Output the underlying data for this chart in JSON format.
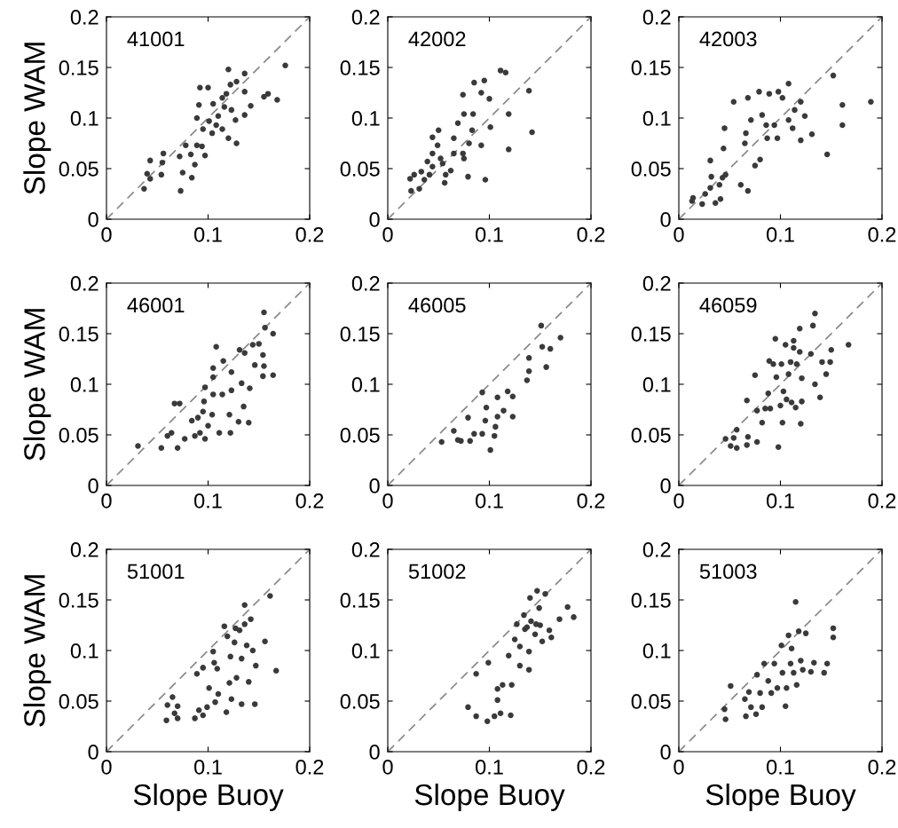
{
  "chart_data": [
    {
      "type": "scatter",
      "title": "41001",
      "ylabel": "Slope WAM",
      "xlim": [
        0,
        0.2
      ],
      "ylim": [
        0,
        0.2
      ],
      "xticks": [
        0,
        0.1,
        0.2
      ],
      "yticks": [
        0,
        0.05,
        0.1,
        0.15,
        0.2
      ],
      "series": [
        {
          "marker": "circle",
          "color": "#3a3a3a",
          "x": [
            0.037,
            0.04,
            0.043,
            0.043,
            0.054,
            0.056,
            0.055,
            0.073,
            0.072,
            0.075,
            0.078,
            0.083,
            0.084,
            0.087,
            0.089,
            0.094,
            0.097,
            0.095,
            0.089,
            0.092,
            0.1,
            0.091,
            0.101,
            0.105,
            0.104,
            0.11,
            0.114,
            0.118,
            0.12,
            0.122,
            0.12,
            0.128,
            0.123,
            0.128,
            0.136,
            0.136,
            0.136,
            0.142,
            0.155,
            0.159,
            0.168,
            0.176,
            0.116,
            0.114,
            0.127,
            0.108
          ],
          "values": [
            0.03,
            0.045,
            0.04,
            0.058,
            0.044,
            0.065,
            0.056,
            0.028,
            0.062,
            0.046,
            0.073,
            0.064,
            0.041,
            0.054,
            0.073,
            0.072,
            0.063,
            0.089,
            0.1,
            0.13,
            0.13,
            0.113,
            0.097,
            0.114,
            0.085,
            0.102,
            0.089,
            0.124,
            0.148,
            0.133,
            0.08,
            0.075,
            0.108,
            0.136,
            0.144,
            0.126,
            0.103,
            0.112,
            0.121,
            0.124,
            0.118,
            0.152,
            0.111,
            0.12,
            0.098,
            0.093
          ]
        },
        {
          "type": "line",
          "color": "#888888",
          "line_style": "dashed",
          "x": [
            0,
            0.2
          ],
          "values": [
            0,
            0.2
          ]
        }
      ]
    },
    {
      "type": "scatter",
      "title": "42002",
      "xlim": [
        0,
        0.2
      ],
      "ylim": [
        0,
        0.2
      ],
      "xticks": [
        0,
        0.1,
        0.2
      ],
      "yticks": [
        0,
        0.05,
        0.1,
        0.15,
        0.2
      ],
      "series": [
        {
          "marker": "circle",
          "color": "#3a3a3a",
          "x": [
            0.022,
            0.023,
            0.031,
            0.026,
            0.033,
            0.036,
            0.041,
            0.044,
            0.039,
            0.044,
            0.044,
            0.05,
            0.049,
            0.052,
            0.054,
            0.057,
            0.056,
            0.062,
            0.065,
            0.065,
            0.069,
            0.074,
            0.075,
            0.075,
            0.074,
            0.08,
            0.083,
            0.084,
            0.085,
            0.079,
            0.092,
            0.092,
            0.095,
            0.096,
            0.1,
            0.101,
            0.111,
            0.116,
            0.119,
            0.119,
            0.139,
            0.142
          ],
          "values": [
            0.04,
            0.028,
            0.03,
            0.044,
            0.047,
            0.039,
            0.044,
            0.052,
            0.057,
            0.065,
            0.081,
            0.088,
            0.073,
            0.06,
            0.055,
            0.044,
            0.036,
            0.048,
            0.065,
            0.08,
            0.095,
            0.065,
            0.06,
            0.104,
            0.123,
            0.075,
            0.088,
            0.104,
            0.135,
            0.042,
            0.073,
            0.125,
            0.137,
            0.039,
            0.119,
            0.091,
            0.147,
            0.145,
            0.104,
            0.069,
            0.127,
            0.086
          ]
        },
        {
          "type": "line",
          "color": "#888888",
          "line_style": "dashed",
          "x": [
            0,
            0.2
          ],
          "values": [
            0,
            0.2
          ]
        }
      ]
    },
    {
      "type": "scatter",
      "title": "42003",
      "xlim": [
        0,
        0.2
      ],
      "ylim": [
        0,
        0.2
      ],
      "xticks": [
        0,
        0.1,
        0.2
      ],
      "yticks": [
        0,
        0.05,
        0.1,
        0.15,
        0.2
      ],
      "series": [
        {
          "marker": "circle",
          "color": "#3a3a3a",
          "x": [
            0.013,
            0.014,
            0.023,
            0.026,
            0.031,
            0.032,
            0.031,
            0.036,
            0.041,
            0.04,
            0.043,
            0.046,
            0.045,
            0.044,
            0.054,
            0.061,
            0.068,
            0.065,
            0.066,
            0.068,
            0.071,
            0.075,
            0.079,
            0.08,
            0.082,
            0.086,
            0.089,
            0.087,
            0.097,
            0.094,
            0.102,
            0.108,
            0.108,
            0.112,
            0.114,
            0.12,
            0.124,
            0.12,
            0.131,
            0.146,
            0.152,
            0.161,
            0.161,
            0.189,
            0.098
          ],
          "values": [
            0.018,
            0.021,
            0.015,
            0.025,
            0.031,
            0.042,
            0.058,
            0.016,
            0.02,
            0.034,
            0.041,
            0.044,
            0.09,
            0.07,
            0.116,
            0.034,
            0.028,
            0.075,
            0.085,
            0.12,
            0.098,
            0.053,
            0.126,
            0.059,
            0.103,
            0.093,
            0.124,
            0.08,
            0.08,
            0.093,
            0.12,
            0.134,
            0.098,
            0.09,
            0.108,
            0.116,
            0.102,
            0.078,
            0.084,
            0.064,
            0.142,
            0.113,
            0.093,
            0.116,
            0.126
          ]
        },
        {
          "type": "line",
          "color": "#888888",
          "line_style": "dashed",
          "x": [
            0,
            0.2
          ],
          "values": [
            0,
            0.2
          ]
        }
      ]
    },
    {
      "type": "scatter",
      "title": "46001",
      "ylabel": "Slope WAM",
      "xlim": [
        0,
        0.2
      ],
      "ylim": [
        0,
        0.2
      ],
      "xticks": [
        0,
        0.1,
        0.2
      ],
      "yticks": [
        0,
        0.05,
        0.1,
        0.15,
        0.2
      ],
      "series": [
        {
          "marker": "circle",
          "color": "#3a3a3a",
          "x": [
            0.031,
            0.054,
            0.06,
            0.064,
            0.07,
            0.067,
            0.072,
            0.077,
            0.084,
            0.087,
            0.09,
            0.095,
            0.092,
            0.097,
            0.1,
            0.096,
            0.097,
            0.104,
            0.105,
            0.105,
            0.105,
            0.108,
            0.111,
            0.114,
            0.115,
            0.121,
            0.122,
            0.123,
            0.123,
            0.131,
            0.13,
            0.135,
            0.133,
            0.136,
            0.141,
            0.14,
            0.144,
            0.146,
            0.15,
            0.154,
            0.155,
            0.155,
            0.154,
            0.156,
            0.164,
            0.164
          ],
          "values": [
            0.039,
            0.037,
            0.049,
            0.052,
            0.037,
            0.081,
            0.081,
            0.046,
            0.064,
            0.049,
            0.067,
            0.073,
            0.052,
            0.046,
            0.059,
            0.083,
            0.097,
            0.07,
            0.09,
            0.107,
            0.116,
            0.137,
            0.052,
            0.09,
            0.123,
            0.07,
            0.052,
            0.112,
            0.094,
            0.134,
            0.063,
            0.078,
            0.101,
            0.131,
            0.096,
            0.062,
            0.139,
            0.119,
            0.14,
            0.129,
            0.171,
            0.118,
            0.108,
            0.156,
            0.15,
            0.109
          ]
        },
        {
          "type": "line",
          "color": "#888888",
          "line_style": "dashed",
          "x": [
            0,
            0.2
          ],
          "values": [
            0,
            0.2
          ]
        }
      ]
    },
    {
      "type": "scatter",
      "title": "46005",
      "xlim": [
        0,
        0.2
      ],
      "ylim": [
        0,
        0.2
      ],
      "xticks": [
        0,
        0.1,
        0.2
      ],
      "yticks": [
        0,
        0.05,
        0.1,
        0.15,
        0.2
      ],
      "series": [
        {
          "marker": "circle",
          "color": "#3a3a3a",
          "x": [
            0.053,
            0.065,
            0.069,
            0.072,
            0.079,
            0.081,
            0.085,
            0.093,
            0.093,
            0.096,
            0.097,
            0.101,
            0.105,
            0.106,
            0.108,
            0.108,
            0.114,
            0.118,
            0.123,
            0.123,
            0.137,
            0.139,
            0.139,
            0.151,
            0.152,
            0.156,
            0.16,
            0.17
          ],
          "values": [
            0.043,
            0.054,
            0.045,
            0.044,
            0.067,
            0.044,
            0.051,
            0.051,
            0.092,
            0.064,
            0.077,
            0.035,
            0.049,
            0.058,
            0.087,
            0.068,
            0.074,
            0.093,
            0.088,
            0.068,
            0.104,
            0.126,
            0.113,
            0.158,
            0.137,
            0.117,
            0.135,
            0.146
          ]
        },
        {
          "type": "line",
          "color": "#888888",
          "line_style": "dashed",
          "x": [
            0,
            0.2
          ],
          "values": [
            0,
            0.2
          ]
        }
      ]
    },
    {
      "type": "scatter",
      "title": "46059",
      "xlim": [
        0,
        0.2
      ],
      "ylim": [
        0,
        0.2
      ],
      "xticks": [
        0,
        0.1,
        0.2
      ],
      "yticks": [
        0,
        0.05,
        0.1,
        0.15,
        0.2
      ],
      "series": [
        {
          "marker": "circle",
          "color": "#3a3a3a",
          "x": [
            0.046,
            0.051,
            0.054,
            0.057,
            0.057,
            0.067,
            0.068,
            0.067,
            0.075,
            0.077,
            0.077,
            0.082,
            0.085,
            0.088,
            0.089,
            0.09,
            0.093,
            0.095,
            0.096,
            0.098,
            0.1,
            0.101,
            0.102,
            0.103,
            0.105,
            0.106,
            0.108,
            0.11,
            0.111,
            0.113,
            0.115,
            0.113,
            0.119,
            0.12,
            0.119,
            0.121,
            0.121,
            0.13,
            0.132,
            0.134,
            0.134,
            0.139,
            0.141,
            0.145,
            0.15,
            0.167,
            0.149,
            0.116
          ],
          "values": [
            0.046,
            0.039,
            0.047,
            0.037,
            0.055,
            0.04,
            0.048,
            0.084,
            0.109,
            0.043,
            0.074,
            0.062,
            0.076,
            0.091,
            0.123,
            0.076,
            0.12,
            0.145,
            0.107,
            0.038,
            0.079,
            0.12,
            0.062,
            0.093,
            0.139,
            0.085,
            0.11,
            0.122,
            0.082,
            0.136,
            0.077,
            0.143,
            0.132,
            0.061,
            0.155,
            0.083,
            0.106,
            0.13,
            0.158,
            0.17,
            0.1,
            0.087,
            0.122,
            0.11,
            0.134,
            0.139,
            0.122,
            0.12
          ]
        },
        {
          "type": "line",
          "color": "#888888",
          "line_style": "dashed",
          "x": [
            0,
            0.2
          ],
          "values": [
            0,
            0.2
          ]
        }
      ]
    },
    {
      "type": "scatter",
      "title": "51001",
      "xlabel": "Slope Buoy",
      "ylabel": "Slope WAM",
      "xlim": [
        0,
        0.2
      ],
      "ylim": [
        0,
        0.2
      ],
      "xticks": [
        0,
        0.1,
        0.2
      ],
      "yticks": [
        0,
        0.05,
        0.1,
        0.15,
        0.2
      ],
      "series": [
        {
          "marker": "circle",
          "color": "#3a3a3a",
          "x": [
            0.059,
            0.06,
            0.065,
            0.067,
            0.07,
            0.07,
            0.087,
            0.089,
            0.091,
            0.095,
            0.095,
            0.099,
            0.101,
            0.105,
            0.106,
            0.107,
            0.109,
            0.11,
            0.116,
            0.118,
            0.119,
            0.121,
            0.122,
            0.123,
            0.126,
            0.127,
            0.128,
            0.131,
            0.133,
            0.133,
            0.136,
            0.138,
            0.14,
            0.142,
            0.144,
            0.147,
            0.146,
            0.156,
            0.161,
            0.167,
            0.136
          ],
          "values": [
            0.031,
            0.046,
            0.054,
            0.038,
            0.045,
            0.033,
            0.033,
            0.077,
            0.041,
            0.036,
            0.083,
            0.044,
            0.063,
            0.099,
            0.088,
            0.049,
            0.082,
            0.057,
            0.124,
            0.039,
            0.114,
            0.068,
            0.094,
            0.052,
            0.108,
            0.122,
            0.073,
            0.12,
            0.047,
            0.092,
            0.145,
            0.105,
            0.069,
            0.131,
            0.1,
            0.085,
            0.047,
            0.109,
            0.154,
            0.08,
            0.126
          ]
        },
        {
          "type": "line",
          "color": "#888888",
          "line_style": "dashed",
          "x": [
            0,
            0.2
          ],
          "values": [
            0,
            0.2
          ]
        }
      ]
    },
    {
      "type": "scatter",
      "title": "51002",
      "xlabel": "Slope Buoy",
      "xlim": [
        0,
        0.2
      ],
      "ylim": [
        0,
        0.2
      ],
      "xticks": [
        0,
        0.1,
        0.2
      ],
      "yticks": [
        0,
        0.05,
        0.1,
        0.15,
        0.2
      ],
      "series": [
        {
          "marker": "circle",
          "color": "#3a3a3a",
          "x": [
            0.079,
            0.087,
            0.087,
            0.098,
            0.099,
            0.105,
            0.108,
            0.108,
            0.111,
            0.113,
            0.119,
            0.121,
            0.122,
            0.125,
            0.127,
            0.13,
            0.13,
            0.134,
            0.135,
            0.139,
            0.139,
            0.14,
            0.141,
            0.145,
            0.147,
            0.149,
            0.15,
            0.152,
            0.155,
            0.159,
            0.161,
            0.169,
            0.177,
            0.183,
            0.146,
            0.137
          ],
          "values": [
            0.044,
            0.077,
            0.035,
            0.03,
            0.088,
            0.035,
            0.051,
            0.062,
            0.038,
            0.066,
            0.095,
            0.036,
            0.066,
            0.111,
            0.126,
            0.085,
            0.104,
            0.135,
            0.121,
            0.081,
            0.099,
            0.152,
            0.129,
            0.116,
            0.159,
            0.142,
            0.125,
            0.109,
            0.156,
            0.12,
            0.113,
            0.131,
            0.143,
            0.133,
            0.126,
            0.123
          ]
        },
        {
          "type": "line",
          "color": "#888888",
          "line_style": "dashed",
          "x": [
            0,
            0.2
          ],
          "values": [
            0,
            0.2
          ]
        }
      ]
    },
    {
      "type": "scatter",
      "title": "51003",
      "xlabel": "Slope Buoy",
      "xlim": [
        0,
        0.2
      ],
      "ylim": [
        0,
        0.2
      ],
      "xticks": [
        0,
        0.1,
        0.2
      ],
      "yticks": [
        0,
        0.05,
        0.1,
        0.15,
        0.2
      ],
      "series": [
        {
          "marker": "circle",
          "color": "#3a3a3a",
          "x": [
            0.045,
            0.046,
            0.051,
            0.065,
            0.066,
            0.069,
            0.071,
            0.076,
            0.077,
            0.08,
            0.084,
            0.082,
            0.088,
            0.091,
            0.094,
            0.097,
            0.101,
            0.102,
            0.105,
            0.106,
            0.108,
            0.11,
            0.111,
            0.113,
            0.115,
            0.116,
            0.118,
            0.12,
            0.122,
            0.125,
            0.13,
            0.133,
            0.146,
            0.152,
            0.152,
            0.143
          ],
          "values": [
            0.042,
            0.032,
            0.065,
            0.052,
            0.035,
            0.059,
            0.044,
            0.037,
            0.076,
            0.058,
            0.087,
            0.044,
            0.07,
            0.058,
            0.087,
            0.063,
            0.105,
            0.078,
            0.045,
            0.063,
            0.115,
            0.087,
            0.102,
            0.078,
            0.148,
            0.066,
            0.119,
            0.09,
            0.081,
            0.117,
            0.079,
            0.088,
            0.087,
            0.122,
            0.113,
            0.078
          ]
        },
        {
          "type": "line",
          "color": "#888888",
          "line_style": "dashed",
          "x": [
            0,
            0.2
          ],
          "values": [
            0,
            0.2
          ]
        }
      ]
    }
  ]
}
